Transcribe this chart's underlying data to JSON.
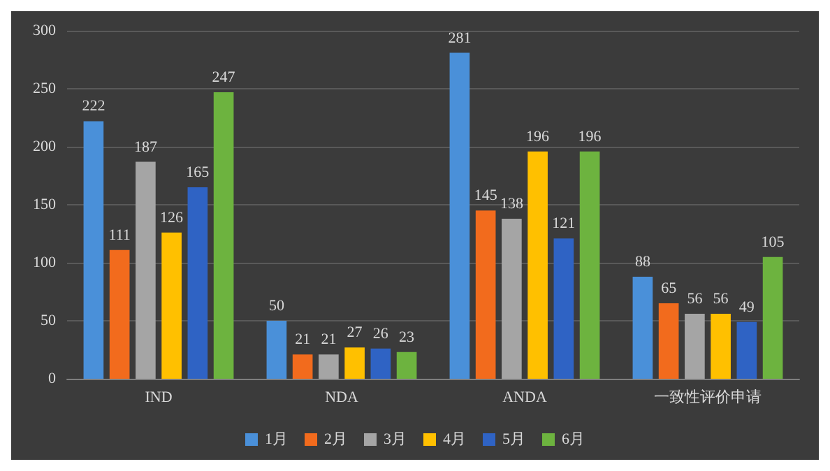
{
  "chart_data": {
    "type": "bar",
    "categories": [
      "IND",
      "NDA",
      "ANDA",
      "一致性评价申请"
    ],
    "series": [
      {
        "name": "1月",
        "color": "#4a90d9",
        "values": [
          222,
          50,
          281,
          88
        ]
      },
      {
        "name": "2月",
        "color": "#f26b1d",
        "values": [
          111,
          21,
          145,
          65
        ]
      },
      {
        "name": "3月",
        "color": "#a5a5a5",
        "values": [
          187,
          21,
          138,
          56
        ]
      },
      {
        "name": "4月",
        "color": "#ffc000",
        "values": [
          126,
          27,
          196,
          56
        ]
      },
      {
        "name": "5月",
        "color": "#2f63c4",
        "values": [
          165,
          26,
          121,
          49
        ]
      },
      {
        "name": "6月",
        "color": "#6db33f",
        "values": [
          247,
          23,
          196,
          105
        ]
      }
    ],
    "ylim": [
      0,
      300
    ],
    "yticks": [
      0,
      50,
      100,
      150,
      200,
      250,
      300
    ],
    "grid": "y",
    "legend": "bottom",
    "data_labels": true
  }
}
